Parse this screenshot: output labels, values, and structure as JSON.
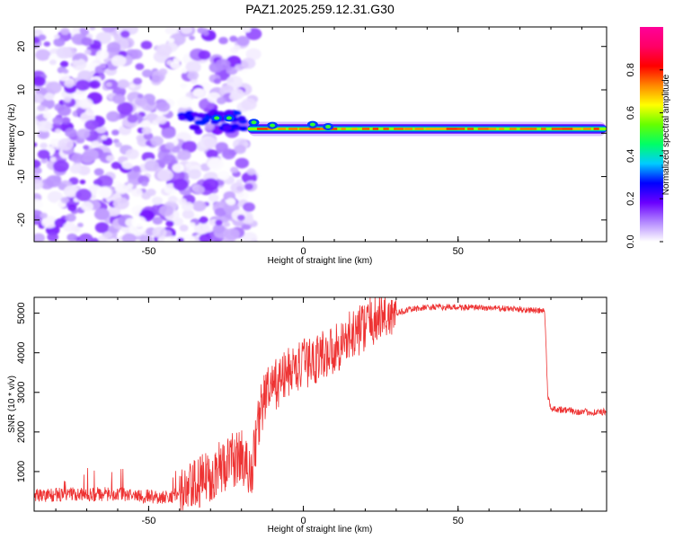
{
  "title": "PAZ1.2025.259.12.31.G30",
  "chart_data": [
    {
      "type": "heatmap",
      "xlabel": "Height of straight line (km)",
      "ylabel": "Frequency (Hz)",
      "xlim": [
        -87,
        98
      ],
      "ylim": [
        -25,
        24.5
      ],
      "xticks": [
        -50,
        0,
        50
      ],
      "yticks": [
        -20,
        -10,
        0,
        10,
        20
      ],
      "colorbar": {
        "label": "Normalized spectral amplitude",
        "range": [
          0,
          1
        ],
        "ticks": [
          "0.0",
          "0.2",
          "0.4",
          "0.6",
          "0.8"
        ],
        "colors": [
          "#ffffff",
          "#b388ff",
          "#6a00ff",
          "#0000ff",
          "#00ccff",
          "#00ff66",
          "#66ff00",
          "#ffff00",
          "#ff8800",
          "#ff0000",
          "#ff0066",
          "#ff0099"
        ]
      },
      "noise_region_x": [
        -87,
        -18
      ],
      "signal_line": {
        "x_start": -18,
        "x_end": 98,
        "frequency": 1,
        "amplitude": 0.75
      },
      "grid": false
    },
    {
      "type": "line",
      "xlabel": "Height of straight line (km)",
      "ylabel": "SNR (10 * v/v)",
      "xlim": [
        -87,
        98
      ],
      "ylim": [
        0,
        5400
      ],
      "xticks": [
        -50,
        0,
        50
      ],
      "yticks": [
        1000,
        2000,
        3000,
        4000,
        5000
      ],
      "color": "#ee3333",
      "grid": false,
      "series": [
        {
          "x": [
            -87,
            -75,
            -60,
            -45,
            -38,
            -32,
            -25,
            -20,
            -17,
            -14,
            -12,
            -10,
            -5,
            0,
            5,
            10,
            15,
            20,
            25,
            30,
            35,
            40,
            50,
            60,
            70,
            78,
            79,
            80,
            85,
            90,
            98
          ],
          "y": [
            400,
            420,
            430,
            350,
            450,
            800,
            1200,
            1400,
            900,
            2500,
            3000,
            3100,
            3500,
            3700,
            3900,
            4100,
            4400,
            4700,
            4900,
            5000,
            5100,
            5150,
            5150,
            5130,
            5100,
            5050,
            2900,
            2600,
            2550,
            2500,
            2500
          ]
        }
      ]
    }
  ]
}
